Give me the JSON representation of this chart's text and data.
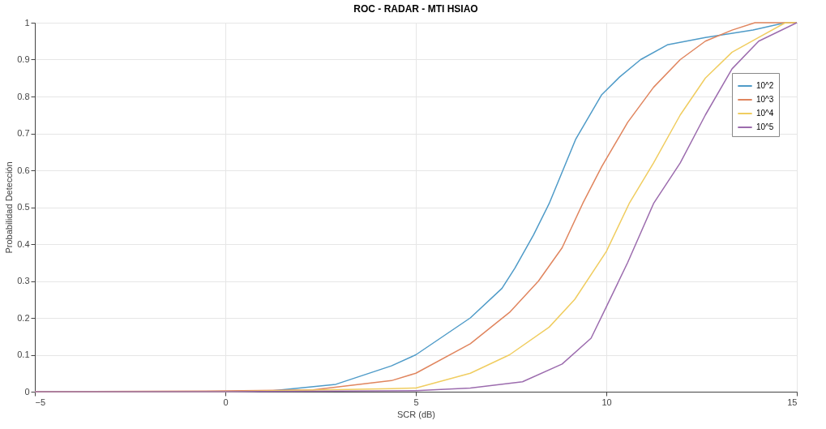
{
  "chart_data": {
    "type": "line",
    "title": "ROC - RADAR - MTI HSIAO",
    "xlabel": "SCR (dB)",
    "ylabel": "Probabilidad Detección",
    "xlim": [
      -5,
      15
    ],
    "ylim": [
      0,
      1
    ],
    "xticks": [
      -5,
      0,
      5,
      10,
      15
    ],
    "yticks": [
      0,
      0.1,
      0.2,
      0.3,
      0.4,
      0.5,
      0.6,
      0.7,
      0.8,
      0.9,
      1
    ],
    "grid": true,
    "legend": "top right",
    "marker": "none",
    "line_style": "solid",
    "series": [
      {
        "name": "10^2",
        "color": "#4f9bc8",
        "x": [
          -5,
          0,
          1.2,
          2.9,
          4.36,
          5,
          6.43,
          7.26,
          7.6,
          8.09,
          8.5,
          9.2,
          9.88,
          10.35,
          10.9,
          11.6,
          12.6,
          13.85,
          14.7,
          15
        ],
        "values": [
          0,
          0,
          0.002,
          0.02,
          0.07,
          0.1,
          0.2,
          0.28,
          0.335,
          0.425,
          0.51,
          0.685,
          0.805,
          0.853,
          0.9,
          0.94,
          0.96,
          0.98,
          1,
          1
        ]
      },
      {
        "name": "10^3",
        "color": "#e0855e",
        "x": [
          -5,
          0,
          2.3,
          4.36,
          5,
          6.43,
          7.46,
          8.22,
          8.84,
          9.38,
          9.88,
          10.56,
          11.24,
          11.94,
          12.6,
          13.3,
          13.9,
          15
        ],
        "values": [
          0,
          0.002,
          0.005,
          0.03,
          0.05,
          0.13,
          0.215,
          0.3,
          0.39,
          0.51,
          0.61,
          0.73,
          0.825,
          0.9,
          0.95,
          0.98,
          1,
          1
        ]
      },
      {
        "name": "10^4",
        "color": "#f0cd60",
        "x": [
          -5,
          0,
          4.36,
          5,
          6.43,
          7.46,
          8.5,
          9.17,
          10,
          10.6,
          11.24,
          11.94,
          12.6,
          13.3,
          14,
          14.7,
          15
        ],
        "values": [
          0,
          0,
          0.008,
          0.01,
          0.05,
          0.1,
          0.175,
          0.25,
          0.38,
          0.51,
          0.62,
          0.75,
          0.85,
          0.92,
          0.96,
          1,
          1
        ]
      },
      {
        "name": "10^5",
        "color": "#9c6cae",
        "x": [
          -5,
          0,
          5,
          6.43,
          7.8,
          8.84,
          9.6,
          10,
          10.56,
          11.24,
          11.94,
          12.6,
          13.3,
          14,
          15
        ],
        "values": [
          0,
          0,
          0.003,
          0.01,
          0.027,
          0.075,
          0.145,
          0.23,
          0.35,
          0.51,
          0.62,
          0.75,
          0.875,
          0.95,
          1
        ]
      }
    ]
  }
}
